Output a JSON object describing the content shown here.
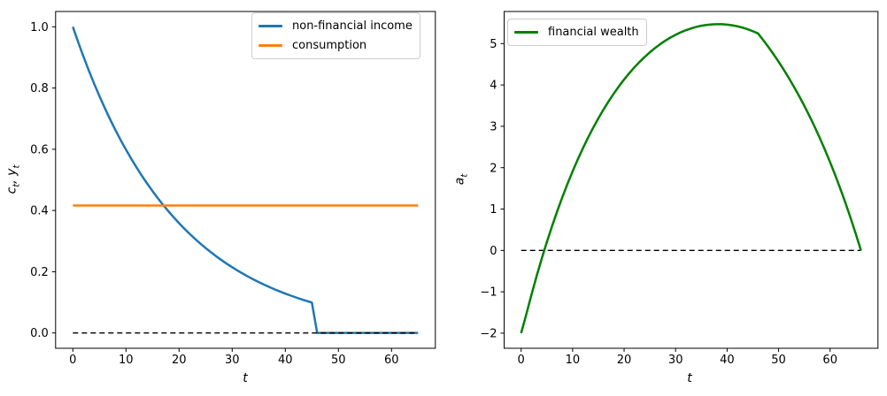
{
  "figure": {
    "background": "#ffffff",
    "accent_colors": {
      "income_blue": "#1f77b4",
      "consumption_orange": "#ff7f0e",
      "wealth_green": "#008000",
      "zero_line_black": "#000000"
    }
  },
  "chart_data": [
    {
      "type": "line",
      "title": "",
      "xlabel": "t",
      "ylabel": "c_t, y_t",
      "xlim": [
        -3.25,
        68.25
      ],
      "ylim": [
        -0.05,
        1.05
      ],
      "grid": false,
      "legend_position": "upper right",
      "xtick_values": [
        0,
        10,
        20,
        30,
        40,
        50,
        60
      ],
      "xtick_labels": [
        "0",
        "10",
        "20",
        "30",
        "40",
        "50",
        "60"
      ],
      "ytick_values": [
        0.0,
        0.2,
        0.4,
        0.6,
        0.8,
        1.0
      ],
      "ytick_labels": [
        "0.0",
        "0.2",
        "0.4",
        "0.6",
        "0.8",
        "1.0"
      ],
      "series": [
        {
          "name": "non-financial income",
          "color": "#1f77b4",
          "linewidth": 2.5,
          "dash": false,
          "legend": true,
          "x0": 0,
          "dx": 1,
          "values": [
            1.0,
            0.95,
            0.9025,
            0.8574,
            0.8145,
            0.7738,
            0.7351,
            0.6983,
            0.6634,
            0.6302,
            0.5987,
            0.5688,
            0.5404,
            0.5133,
            0.4877,
            0.4633,
            0.4401,
            0.4181,
            0.3972,
            0.3774,
            0.3585,
            0.3406,
            0.3235,
            0.3074,
            0.292,
            0.2774,
            0.2635,
            0.2503,
            0.2378,
            0.2259,
            0.2146,
            0.2039,
            0.1937,
            0.184,
            0.1748,
            0.1661,
            0.1578,
            0.1499,
            0.1424,
            0.1353,
            0.1285,
            0.1221,
            0.116,
            0.1102,
            0.1047,
            0.0994,
            0,
            0,
            0,
            0,
            0,
            0,
            0,
            0,
            0,
            0,
            0,
            0,
            0,
            0,
            0,
            0,
            0,
            0,
            0,
            0
          ]
        },
        {
          "name": "consumption",
          "color": "#ff7f0e",
          "linewidth": 2.5,
          "dash": false,
          "legend": true,
          "x": [
            0,
            65
          ],
          "values": [
            0.4164,
            0.4164
          ]
        },
        {
          "name": "zero line",
          "color": "#000000",
          "linewidth": 1.3,
          "dash": true,
          "legend": false,
          "x": [
            0,
            65
          ],
          "values": [
            0,
            0
          ]
        }
      ]
    },
    {
      "type": "line",
      "title": "",
      "xlabel": "t",
      "ylabel": "a_t",
      "xlim": [
        -3.3,
        69.3
      ],
      "ylim": [
        -2.365,
        5.776
      ],
      "grid": false,
      "legend_position": "upper left",
      "xtick_values": [
        0,
        10,
        20,
        30,
        40,
        50,
        60
      ],
      "xtick_labels": [
        "0",
        "10",
        "20",
        "30",
        "40",
        "50",
        "60"
      ],
      "ytick_values": [
        -2,
        -1,
        0,
        1,
        2,
        3,
        4,
        5
      ],
      "ytick_labels": [
        "−2",
        "−1",
        "0",
        "1",
        "2",
        "3",
        "4",
        "5"
      ],
      "series": [
        {
          "name": "zero line",
          "color": "#000000",
          "linewidth": 1.3,
          "dash": true,
          "legend": false,
          "x": [
            0,
            66
          ],
          "values": [
            0,
            0
          ]
        },
        {
          "name": "financial wealth",
          "color": "#008000",
          "linewidth": 2.5,
          "dash": false,
          "legend": true,
          "x0": 0,
          "dx": 1,
          "values": [
            -2.0,
            -1.547,
            -1.073,
            -0.624,
            -0.199,
            0.204,
            0.585,
            0.945,
            1.286,
            1.608,
            1.913,
            2.2,
            2.471,
            2.727,
            2.967,
            3.194,
            3.406,
            3.606,
            3.793,
            3.968,
            4.132,
            4.284,
            4.426,
            4.557,
            4.678,
            4.79,
            4.892,
            4.986,
            5.07,
            5.146,
            5.213,
            5.273,
            5.324,
            5.367,
            5.403,
            5.431,
            5.451,
            5.464,
            5.47,
            5.468,
            5.458,
            5.442,
            5.418,
            5.386,
            5.347,
            5.3,
            5.246,
            5.087,
            4.921,
            4.745,
            4.562,
            4.369,
            4.166,
            3.953,
            3.73,
            3.495,
            3.249,
            2.99,
            2.718,
            2.433,
            2.134,
            1.819,
            1.489,
            1.143,
            0.779,
            0.396,
            0.0
          ]
        }
      ]
    }
  ]
}
